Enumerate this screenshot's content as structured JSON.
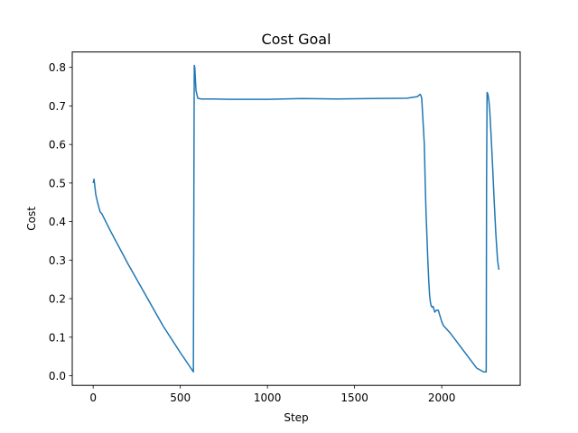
{
  "chart_data": {
    "type": "line",
    "title": "Cost Goal",
    "xlabel": "Step",
    "ylabel": "Cost",
    "xlim": [
      -120,
      2450
    ],
    "ylim": [
      -0.025,
      0.84
    ],
    "xticks": [
      0,
      500,
      1000,
      1500,
      2000
    ],
    "xtick_labels": [
      "0",
      "500",
      "1000",
      "1500",
      "2000"
    ],
    "yticks": [
      0.0,
      0.1,
      0.2,
      0.3,
      0.4,
      0.5,
      0.6,
      0.7,
      0.8
    ],
    "ytick_labels": [
      "0.0",
      "0.1",
      "0.2",
      "0.3",
      "0.4",
      "0.5",
      "0.6",
      "0.7",
      "0.8"
    ],
    "grid": false,
    "series": [
      {
        "color": "#1f77b4",
        "x": [
          0,
          5,
          10,
          15,
          25,
          40,
          50,
          100,
          200,
          300,
          400,
          500,
          575,
          578,
          580,
          583,
          590,
          600,
          620,
          700,
          800,
          1000,
          1200,
          1400,
          1600,
          1800,
          1860,
          1870,
          1875,
          1880,
          1885,
          1900,
          1905,
          1910,
          1915,
          1920,
          1925,
          1930,
          1935,
          1940,
          1945,
          1950,
          1960,
          1970,
          1980,
          1990,
          2000,
          2010,
          2050,
          2100,
          2150,
          2200,
          2240,
          2255,
          2257,
          2260,
          2265,
          2270,
          2275,
          2280,
          2290,
          2300,
          2310,
          2320,
          2328
        ],
        "y": [
          0.5,
          0.51,
          0.49,
          0.47,
          0.45,
          0.425,
          0.42,
          0.375,
          0.29,
          0.21,
          0.13,
          0.06,
          0.01,
          0.5,
          0.805,
          0.8,
          0.74,
          0.72,
          0.718,
          0.718,
          0.717,
          0.717,
          0.719,
          0.718,
          0.719,
          0.72,
          0.724,
          0.728,
          0.73,
          0.727,
          0.72,
          0.6,
          0.5,
          0.42,
          0.36,
          0.3,
          0.25,
          0.21,
          0.19,
          0.18,
          0.178,
          0.18,
          0.165,
          0.17,
          0.17,
          0.155,
          0.14,
          0.13,
          0.11,
          0.08,
          0.05,
          0.02,
          0.01,
          0.01,
          0.5,
          0.735,
          0.73,
          0.715,
          0.69,
          0.65,
          0.56,
          0.46,
          0.37,
          0.3,
          0.275
        ]
      }
    ]
  }
}
